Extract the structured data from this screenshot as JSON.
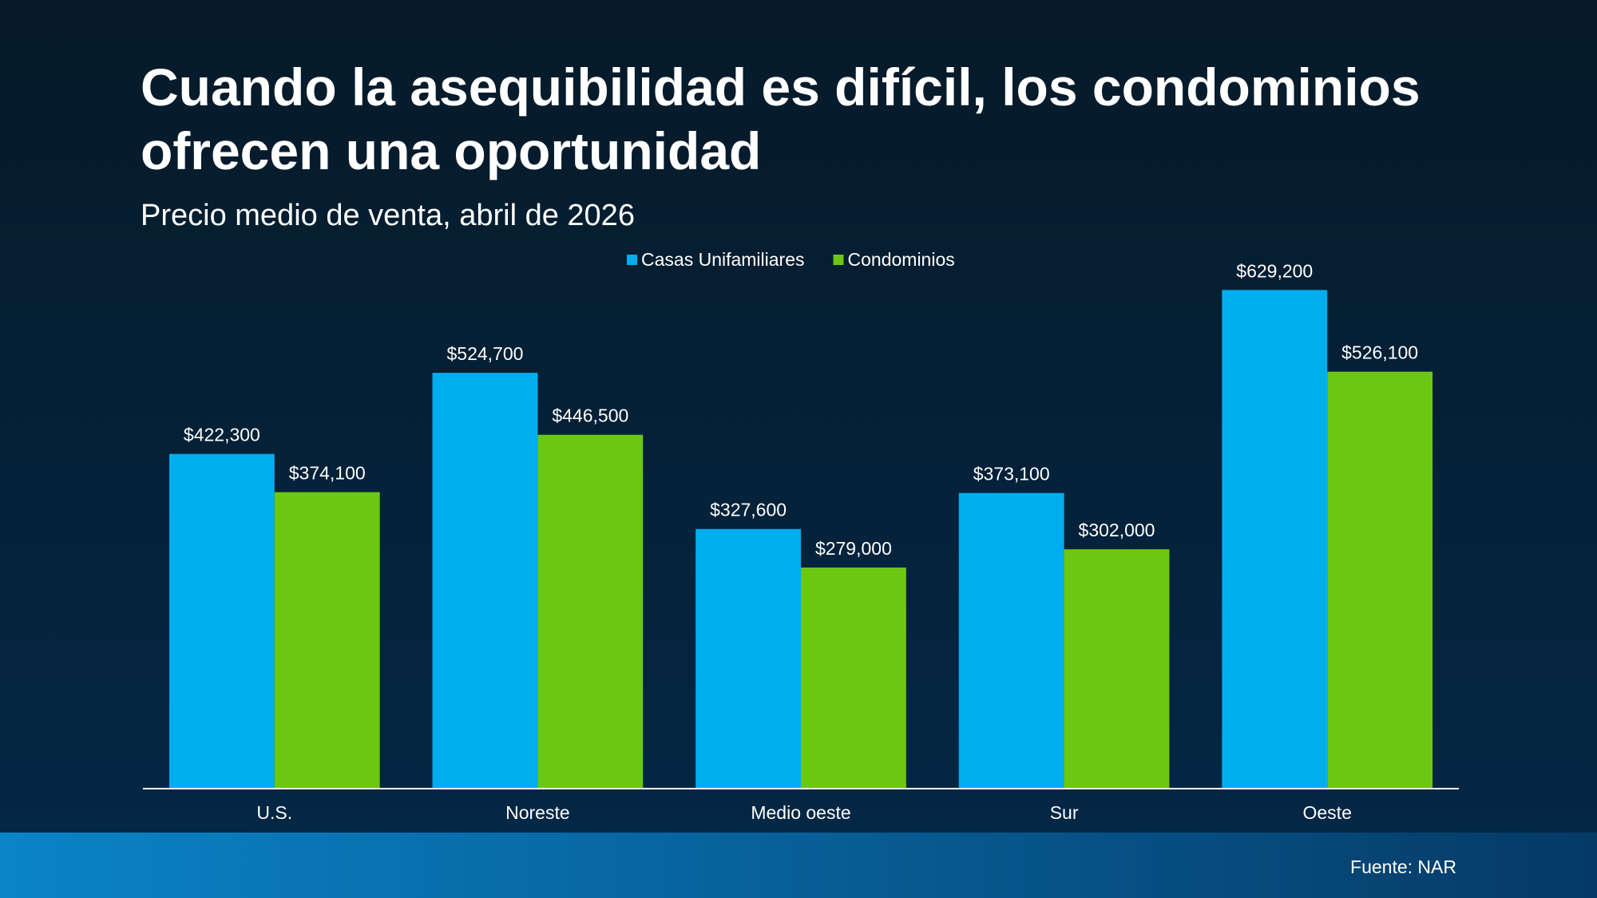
{
  "chart_data": {
    "type": "bar",
    "title": "Cuando la asequibilidad es difícil, los condominios ofrecen una oportunidad",
    "subtitle": "Precio medio de venta, abril de 2026",
    "source": "Fuente: NAR",
    "categories": [
      "U.S.",
      "Noreste",
      "Medio oeste",
      "Sur",
      "Oeste"
    ],
    "series": [
      {
        "name": "Casas Unifamiliares",
        "color": "#00aeef",
        "values": [
          422300,
          524700,
          327600,
          373100,
          629200
        ],
        "value_labels": [
          "$422,300",
          "$524,700",
          "$327,600",
          "$373,100",
          "$629,200"
        ]
      },
      {
        "name": "Condominios",
        "color": "#6cc712",
        "values": [
          374100,
          446500,
          279000,
          302000,
          526100
        ],
        "value_labels": [
          "$374,100",
          "$446,500",
          "$279,000",
          "$302,000",
          "$526,100"
        ]
      }
    ],
    "ylim": [
      0,
      700000
    ],
    "legend": "top"
  }
}
